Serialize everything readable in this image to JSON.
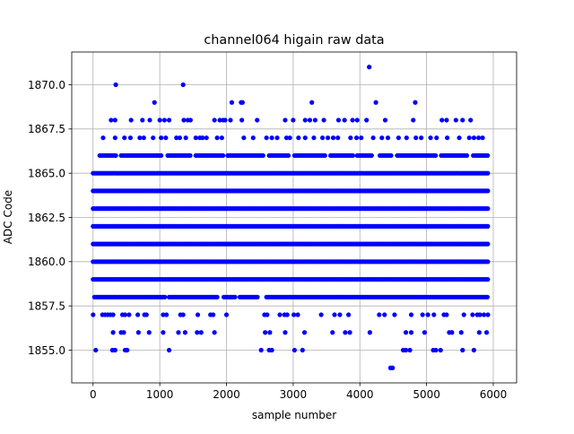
{
  "chart_data": {
    "type": "scatter",
    "title": "channel064 higain raw data",
    "xlabel": "sample number",
    "ylabel": "ADC Code",
    "xlim": [
      -320,
      6350
    ],
    "ylim": [
      1853.15,
      1871.85
    ],
    "x_ticks": [
      0,
      1000,
      2000,
      3000,
      4000,
      5000,
      6000
    ],
    "x_tick_labels": [
      "0",
      "1000",
      "2000",
      "3000",
      "4000",
      "5000",
      "6000"
    ],
    "y_ticks": [
      1855.0,
      1857.5,
      1860.0,
      1862.5,
      1865.0,
      1867.5,
      1870.0
    ],
    "y_tick_labels": [
      "1855.0",
      "1857.5",
      "1860.0",
      "1862.5",
      "1865.0",
      "1867.5",
      "1870.0"
    ],
    "grid": true,
    "marker_color": "#0000ff",
    "series": [
      {
        "description": "raw ADC samples, samples 0-5930",
        "dense_levels": [
          {
            "y": 1859,
            "x_range": [
              0,
              5930
            ]
          },
          {
            "y": 1860,
            "x_range": [
              0,
              5930
            ]
          },
          {
            "y": 1861,
            "x_range": [
              0,
              5930
            ]
          },
          {
            "y": 1862,
            "x_range": [
              0,
              5930
            ]
          },
          {
            "y": 1863,
            "x_range": [
              0,
              5930
            ]
          },
          {
            "y": 1864,
            "x_range": [
              0,
              5930
            ]
          },
          {
            "y": 1865,
            "x_range": [
              0,
              5930
            ]
          }
        ],
        "semi_dense_levels": [
          {
            "y": 1858,
            "x_ranges": [
              [
                20,
                1080
              ],
              [
                1140,
                1860
              ],
              [
                1960,
                2130
              ],
              [
                2200,
                2480
              ],
              [
                2600,
                5930
              ]
            ]
          },
          {
            "y": 1866,
            "x_ranges": [
              [
                100,
                360
              ],
              [
                420,
                1040
              ],
              [
                1120,
                1460
              ],
              [
                1540,
                1960
              ],
              [
                2020,
                2560
              ],
              [
                2640,
                2940
              ],
              [
                3020,
                3480
              ],
              [
                3560,
                3900
              ],
              [
                3960,
                4180
              ],
              [
                4300,
                4480
              ],
              [
                4560,
                5140
              ],
              [
                5220,
                5620
              ],
              [
                5700,
                5930
              ]
            ]
          }
        ],
        "sparse_points": [
          {
            "y": 1867,
            "x": [
              150,
              330,
              470,
              560,
              700,
              760,
              900,
              1020,
              1090,
              1250,
              1300,
              1390,
              1540,
              1600,
              1640,
              1700,
              1860,
              1930,
              2260,
              2400,
              2600,
              2680,
              2760,
              2900,
              2950,
              3080,
              3180,
              3310,
              3440,
              3520,
              3600,
              3670,
              3860,
              3950,
              4020,
              4200,
              4330,
              4420,
              4580,
              4700,
              4840,
              4920,
              5060,
              5150,
              5310,
              5490,
              5640,
              5710,
              5780,
              5840
            ]
          },
          {
            "y": 1868,
            "x": [
              270,
              330,
              570,
              740,
              850,
              1000,
              1070,
              1140,
              1360,
              1420,
              1460,
              1820,
              1900,
              1950,
              1980,
              2060,
              2230,
              2460,
              2880,
              3000,
              3180,
              3250,
              3330,
              3460,
              3680,
              3770,
              3890,
              3960,
              4100,
              4380,
              4800,
              5230,
              5300,
              5440,
              5540,
              5660
            ]
          },
          {
            "y": 1869,
            "x": [
              920,
              2080,
              2220,
              2240,
              3280,
              4240,
              4830
            ]
          },
          {
            "y": 1870,
            "x": [
              340,
              1350
            ]
          },
          {
            "y": 1871,
            "x": [
              4140
            ]
          },
          {
            "y": 1857,
            "x": [
              0,
              140,
              180,
              220,
              260,
              300,
              440,
              480,
              540,
              670,
              770,
              800,
              1050,
              1100,
              1310,
              1350,
              1570,
              1760,
              1800,
              2000,
              2570,
              2610,
              2800,
              2870,
              2910,
              3010,
              3070,
              3420,
              3620,
              3700,
              3830,
              4290,
              4370,
              4520,
              4770,
              4940,
              5020,
              5110,
              5260,
              5300,
              5560,
              5690,
              5760,
              5800,
              5860,
              5920
            ]
          },
          {
            "y": 1856,
            "x": [
              300,
              420,
              460,
              680,
              840,
              1050,
              1280,
              1380,
              1560,
              1620,
              1820,
              2580,
              2650,
              2880,
              3170,
              3590,
              3780,
              3850,
              4150,
              4690,
              4770,
              4970,
              5340,
              5380,
              5520,
              5790,
              5900
            ]
          },
          {
            "y": 1855,
            "x": [
              40,
              290,
              330,
              480,
              510,
              1140,
              2520,
              2640,
              2680,
              3020,
              3140,
              4650,
              4690,
              4750,
              5100,
              5140,
              5210,
              5540,
              5710
            ]
          },
          {
            "y": 1854,
            "x": [
              4460,
              4490
            ]
          }
        ]
      }
    ]
  }
}
